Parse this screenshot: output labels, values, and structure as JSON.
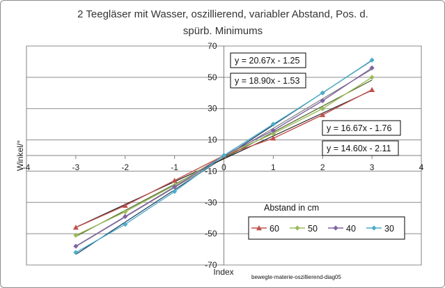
{
  "chart_data": {
    "type": "line",
    "title": [
      "2 Teegläser mit Wasser, oszillierend, variabler Abstand, Pos. d.",
      "spürb. Minimums"
    ],
    "xlabel": "Index",
    "ylabel": "Winkel/°",
    "xlim": [
      -4,
      4
    ],
    "ylim": [
      -70,
      70
    ],
    "x_ticks": [
      -4,
      -3,
      -2,
      -1,
      0,
      1,
      2,
      3,
      4
    ],
    "y_ticks": [
      -70,
      -50,
      -30,
      -10,
      10,
      30,
      50,
      70
    ],
    "grid": "horizontal",
    "legend_title": "Abstand in cm",
    "legend_position": "bottom-right",
    "x": [
      -3,
      -2,
      -1,
      0,
      1,
      2,
      3
    ],
    "series": [
      {
        "name": "60",
        "color": "#c0504d",
        "marker": "triangle",
        "values": [
          -46,
          -32,
          -16,
          0,
          11,
          26,
          42
        ]
      },
      {
        "name": "50",
        "color": "#9bbb59",
        "marker": "diamond",
        "values": [
          -51,
          -36,
          -19,
          0,
          14,
          30,
          50
        ]
      },
      {
        "name": "40",
        "color": "#8064a2",
        "marker": "diamond",
        "values": [
          -58,
          -39,
          -20,
          0,
          16,
          35,
          56
        ]
      },
      {
        "name": "30",
        "color": "#4bacc6",
        "marker": "diamond",
        "values": [
          -62,
          -44,
          -23,
          0,
          20,
          40,
          61
        ]
      }
    ],
    "trendlines": [
      {
        "series": "30",
        "label": "y = 20.67x - 1.25",
        "slope": 20.67,
        "intercept": -1.25
      },
      {
        "series": "40",
        "label": "y = 18.90x - 1.53",
        "slope": 18.9,
        "intercept": -1.53
      },
      {
        "series": "50",
        "label": "y = 16.67x - 1.76",
        "slope": 16.67,
        "intercept": -1.76
      },
      {
        "series": "60",
        "label": "y = 14.60x - 2.11",
        "slope": 14.6,
        "intercept": -2.11
      }
    ],
    "trendline_colors": [
      "#17375e",
      "#7f7f7f",
      "#4f6228",
      "#1f1f1f"
    ],
    "footnote": "bewegte-materie-oszillierend-diag05"
  }
}
